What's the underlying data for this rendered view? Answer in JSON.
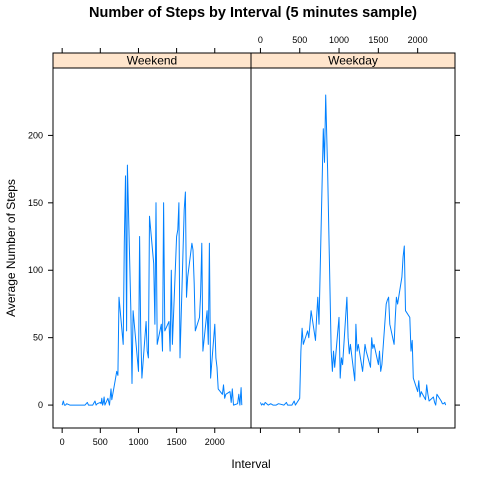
{
  "chart_data": {
    "type": "line",
    "title": "Number of Steps by Interval (5 minutes sample)",
    "xlabel": "Interval",
    "ylabel": "Average Number of Steps",
    "xlim": [
      -120,
      2475
    ],
    "ylim": [
      -17,
      250
    ],
    "x_ticks": [
      0,
      500,
      1000,
      1500,
      2000
    ],
    "y_ticks": [
      0,
      50,
      100,
      150,
      200
    ],
    "color": "#0080ff",
    "strip_color": "#ffe5cc",
    "panels": [
      {
        "name": "Weekend",
        "x": [
          0,
          15,
          30,
          45,
          60,
          100,
          130,
          160,
          200,
          230,
          300,
          330,
          345,
          400,
          430,
          445,
          460,
          500,
          510,
          520,
          530,
          540,
          550,
          560,
          600,
          620,
          640,
          650,
          700,
          715,
          730,
          745,
          800,
          815,
          830,
          845,
          855,
          900,
          915,
          930,
          945,
          1000,
          1015,
          1030,
          1045,
          1100,
          1115,
          1130,
          1145,
          1200,
          1215,
          1230,
          1245,
          1300,
          1315,
          1330,
          1345,
          1400,
          1415,
          1430,
          1445,
          1500,
          1515,
          1530,
          1545,
          1600,
          1615,
          1630,
          1645,
          1700,
          1715,
          1730,
          1745,
          1800,
          1815,
          1830,
          1845,
          1900,
          1915,
          1930,
          1945,
          2000,
          2015,
          2030,
          2045,
          2100,
          2115,
          2130,
          2145,
          2200,
          2215,
          2230,
          2245,
          2300,
          2315,
          2330,
          2345,
          2355
        ],
        "values": [
          0,
          3,
          0,
          0,
          1,
          0,
          0,
          0,
          0,
          0,
          0,
          2,
          0,
          0,
          3,
          0,
          1,
          2,
          1,
          5,
          0,
          2,
          6,
          0,
          5,
          0,
          12,
          4,
          20,
          25,
          22,
          80,
          45,
          120,
          170,
          55,
          178,
          72,
          16,
          70,
          60,
          25,
          125,
          55,
          20,
          62,
          40,
          35,
          140,
          105,
          60,
          150,
          45,
          60,
          40,
          150,
          55,
          62,
          40,
          100,
          45,
          125,
          130,
          150,
          35,
          145,
          158,
          80,
          95,
          120,
          115,
          90,
          55,
          65,
          82,
          120,
          40,
          70,
          45,
          120,
          20,
          60,
          35,
          28,
          12,
          8,
          15,
          5,
          8,
          10,
          2,
          12,
          0,
          1,
          8,
          0,
          13,
          0
        ]
      },
      {
        "name": "Weekday",
        "x": [
          0,
          15,
          30,
          45,
          60,
          100,
          130,
          160,
          200,
          230,
          300,
          330,
          345,
          400,
          430,
          445,
          500,
          515,
          530,
          545,
          600,
          615,
          630,
          645,
          700,
          715,
          730,
          745,
          800,
          815,
          830,
          845,
          855,
          900,
          915,
          930,
          945,
          1000,
          1015,
          1030,
          1045,
          1100,
          1115,
          1130,
          1145,
          1200,
          1215,
          1230,
          1245,
          1300,
          1315,
          1330,
          1345,
          1400,
          1415,
          1430,
          1445,
          1500,
          1515,
          1530,
          1545,
          1600,
          1615,
          1630,
          1645,
          1700,
          1715,
          1730,
          1745,
          1800,
          1815,
          1830,
          1845,
          1900,
          1915,
          1930,
          1945,
          2000,
          2015,
          2030,
          2045,
          2100,
          2115,
          2130,
          2145,
          2200,
          2215,
          2230,
          2245,
          2300,
          2315,
          2330,
          2345,
          2355
        ],
        "values": [
          2,
          0,
          1,
          0,
          2,
          0,
          1,
          0,
          0,
          1,
          0,
          2,
          0,
          0,
          3,
          0,
          5,
          40,
          57,
          45,
          55,
          50,
          60,
          70,
          48,
          65,
          80,
          60,
          205,
          180,
          230,
          195,
          175,
          40,
          25,
          40,
          28,
          65,
          20,
          35,
          30,
          80,
          50,
          38,
          45,
          18,
          60,
          40,
          45,
          25,
          35,
          45,
          40,
          28,
          50,
          42,
          45,
          30,
          40,
          25,
          30,
          75,
          78,
          80,
          60,
          45,
          65,
          80,
          75,
          95,
          110,
          118,
          70,
          65,
          40,
          48,
          20,
          10,
          18,
          6,
          10,
          4,
          15,
          8,
          3,
          6,
          2,
          0,
          8,
          3,
          1,
          1,
          2,
          0
        ]
      }
    ]
  }
}
